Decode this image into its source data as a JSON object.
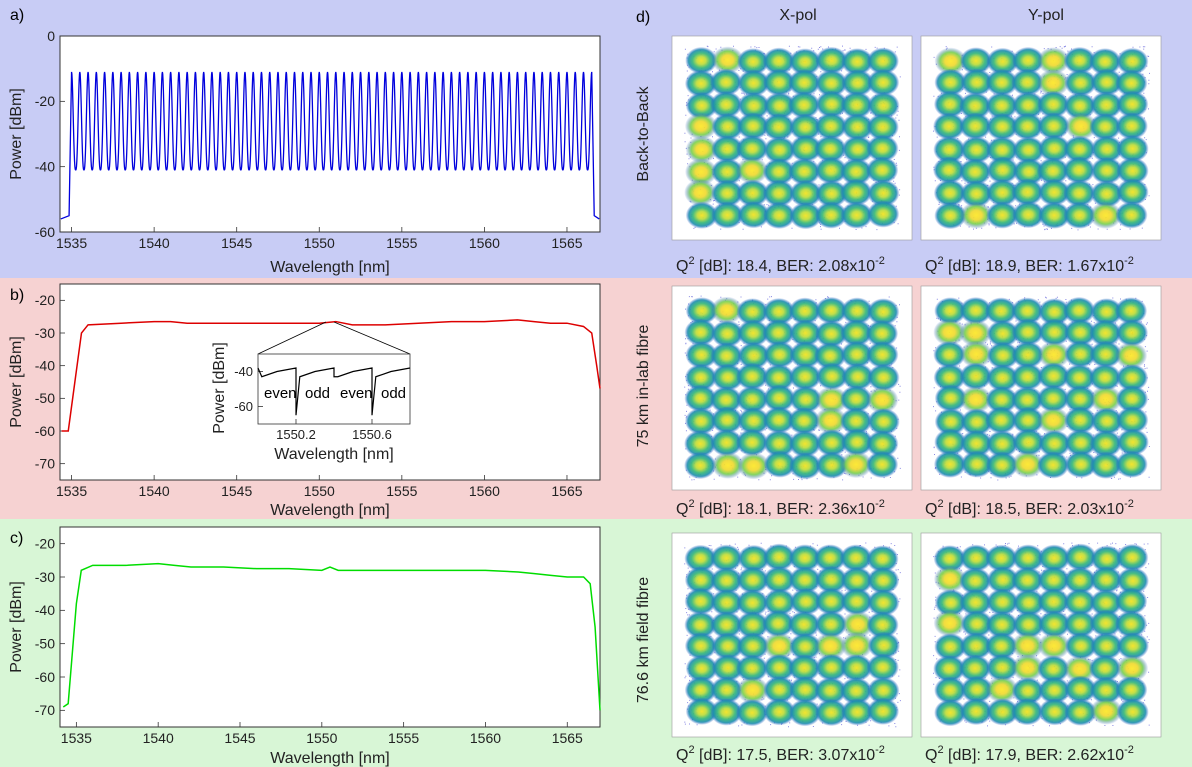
{
  "colors": {
    "panel_a_bg": "#c8ccf5",
    "panel_b_bg": "#f6d2d2",
    "panel_c_bg": "#d8f6d6",
    "series_a": "#0000dd",
    "series_b": "#dd0000",
    "series_c": "#00dd00",
    "inset": "#000000"
  },
  "chart_data": [
    {
      "id": "a",
      "type": "line",
      "panel_label": "a)",
      "xlabel": "Wavelength [nm]",
      "ylabel": "Power [dBm]",
      "xlim": [
        1534.3,
        1567.0
      ],
      "ylim": [
        -60,
        0
      ],
      "xticks": [
        1535,
        1540,
        1545,
        1550,
        1555,
        1560,
        1565
      ],
      "yticks": [
        0,
        -20,
        -40,
        -60
      ],
      "comb": {
        "x_start": 1535.0,
        "x_end": 1566.5,
        "spacing": 0.5,
        "peak_dbm": -11,
        "trough_dbm": -41,
        "floor_dbm": -56
      }
    },
    {
      "id": "b",
      "type": "line",
      "panel_label": "b)",
      "xlabel": "Wavelength [nm]",
      "ylabel": "Power [dBm]",
      "xlim": [
        1534.3,
        1567.0
      ],
      "ylim": [
        -75,
        -15
      ],
      "xticks": [
        1535,
        1540,
        1545,
        1550,
        1555,
        1560,
        1565
      ],
      "yticks": [
        -20,
        -30,
        -40,
        -50,
        -60,
        -70
      ],
      "x": [
        1534.4,
        1534.8,
        1535.2,
        1535.6,
        1536.0,
        1538,
        1540,
        1541,
        1542,
        1544,
        1546,
        1548,
        1550,
        1551,
        1552,
        1554,
        1556,
        1558,
        1560,
        1562,
        1563,
        1564,
        1565,
        1566,
        1566.5,
        1566.8,
        1567.0
      ],
      "y": [
        -60,
        -60,
        -45,
        -30,
        -27.5,
        -27,
        -26.5,
        -26.5,
        -27,
        -27,
        -27,
        -27,
        -27,
        -26.5,
        -27.5,
        -27.5,
        -27,
        -26.5,
        -26.5,
        -26,
        -26.5,
        -27,
        -27,
        -28,
        -30,
        -40,
        -47
      ],
      "inset": {
        "xlabel": "Wavelength [nm]",
        "ylabel": "Power [dBm]",
        "xlim": [
          1550.0,
          1550.8
        ],
        "ylim": [
          -70,
          -30
        ],
        "xticks": [
          1550.2,
          1550.6
        ],
        "yticks": [
          -40,
          -60
        ],
        "x": [
          1550.0,
          1550.02,
          1550.1,
          1550.2,
          1550.2,
          1550.22,
          1550.3,
          1550.4,
          1550.4,
          1550.42,
          1550.5,
          1550.6,
          1550.6,
          1550.62,
          1550.7,
          1550.8
        ],
        "y": [
          -38,
          -43,
          -40,
          -38,
          -65,
          -43,
          -40,
          -38,
          -43,
          -43,
          -40,
          -38,
          -65,
          -43,
          -40,
          -38
        ],
        "annotations": [
          "even",
          "odd",
          "even",
          "odd"
        ]
      }
    },
    {
      "id": "c",
      "type": "line",
      "panel_label": "c)",
      "xlabel": "Wavelength [nm]",
      "ylabel": "Power [dBm]",
      "xlim": [
        1534.0,
        1567.0
      ],
      "ylim": [
        -75,
        -15
      ],
      "xticks": [
        1535,
        1540,
        1545,
        1550,
        1555,
        1560,
        1565
      ],
      "yticks": [
        -20,
        -30,
        -40,
        -50,
        -60,
        -70
      ],
      "x": [
        1534.2,
        1534.5,
        1534.8,
        1535.0,
        1535.3,
        1536,
        1538,
        1540,
        1541,
        1542,
        1544,
        1546,
        1548,
        1550,
        1550.5,
        1551,
        1552,
        1554,
        1556,
        1558,
        1560,
        1562,
        1563,
        1564,
        1565,
        1566,
        1566.4,
        1566.7,
        1567.0
      ],
      "y": [
        -69,
        -68,
        -50,
        -38,
        -28,
        -26.5,
        -26.5,
        -26,
        -26.5,
        -27,
        -27,
        -27.5,
        -27.5,
        -28,
        -27,
        -28,
        -28,
        -28,
        -28,
        -28,
        -28,
        -28.5,
        -29,
        -29.5,
        -30,
        -30,
        -32,
        -45,
        -70
      ]
    },
    {
      "id": "d",
      "type": "scatter",
      "panel_label": "d)",
      "columns": [
        "X-pol",
        "Y-pol"
      ],
      "rows": [
        {
          "label": "Back-to-Back",
          "captions": [
            "18.4, BER: 2.08x10",
            "18.9, BER: 1.67x10"
          ],
          "exponents": [
            "-2",
            "-2"
          ]
        },
        {
          "label": "75 km in-lab fibre",
          "captions": [
            "18.1, BER: 2.36x10",
            "18.5, BER: 2.03x10"
          ],
          "exponents": [
            "-2",
            "-2"
          ]
        },
        {
          "label": "76.6 km field fibre",
          "captions": [
            "17.5, BER: 3.07x10",
            "17.9, BER: 2.62x10"
          ],
          "exponents": [
            "-2",
            "-2"
          ]
        }
      ],
      "caption_prefix": "Q",
      "caption_sup": "2",
      "caption_unit": " [dB]: ",
      "constellation": "64-QAM"
    }
  ]
}
